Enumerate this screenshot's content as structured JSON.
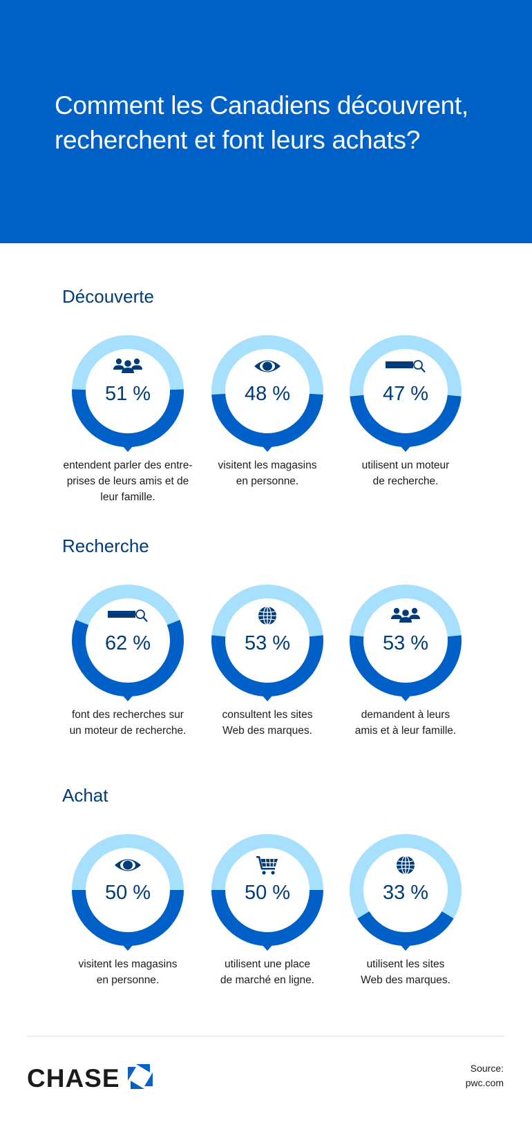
{
  "header": {
    "title_lines": [
      "Comment les Canadiens découvrent,",
      "recherchent et font leurs achats?"
    ]
  },
  "colors": {
    "header_bg": "#0061c6",
    "ring_light": "#a7e0fd",
    "ring_dark": "#0060c8",
    "text_navy": "#003b7a"
  },
  "sections": [
    {
      "title": "Découverte",
      "stats": [
        {
          "value": "51 %",
          "percent": 51,
          "icon": "people-icon",
          "caption_lines": [
            "entendent parler des entre-",
            "prises de leurs amis et de",
            "leur famille."
          ]
        },
        {
          "value": "48 %",
          "percent": 48,
          "icon": "eye-icon",
          "caption_lines": [
            "visitent les magasins",
            "en personne."
          ]
        },
        {
          "value": "47 %",
          "percent": 47,
          "icon": "search-bar-icon",
          "caption_lines": [
            "utilisent un moteur",
            "de recherche."
          ]
        }
      ]
    },
    {
      "title": "Recherche",
      "stats": [
        {
          "value": "62 %",
          "percent": 62,
          "icon": "search-bar-icon",
          "caption_lines": [
            "font des recherches sur",
            "un moteur de recherche."
          ]
        },
        {
          "value": "53 %",
          "percent": 53,
          "icon": "globe-icon",
          "caption_lines": [
            "consultent les sites",
            "Web des marques."
          ]
        },
        {
          "value": "53 %",
          "percent": 53,
          "icon": "people-icon",
          "caption_lines": [
            "demandent à leurs",
            "amis et à leur famille."
          ]
        }
      ]
    },
    {
      "title": "Achat",
      "stats": [
        {
          "value": "50 %",
          "percent": 50,
          "icon": "eye-icon",
          "caption_lines": [
            "visitent les magasins",
            "en personne."
          ]
        },
        {
          "value": "50 %",
          "percent": 50,
          "icon": "cart-icon",
          "caption_lines": [
            "utilisent une place",
            "de marché en ligne."
          ]
        },
        {
          "value": "33 %",
          "percent": 33,
          "icon": "globe-icon",
          "caption_lines": [
            "utilisent les sites",
            "Web des marques."
          ]
        }
      ]
    }
  ],
  "footer": {
    "brand": "CHASE",
    "brand_logo_icon": "chase-octagon-logo-icon",
    "source_lines": [
      "Source:",
      "pwc.com"
    ]
  }
}
